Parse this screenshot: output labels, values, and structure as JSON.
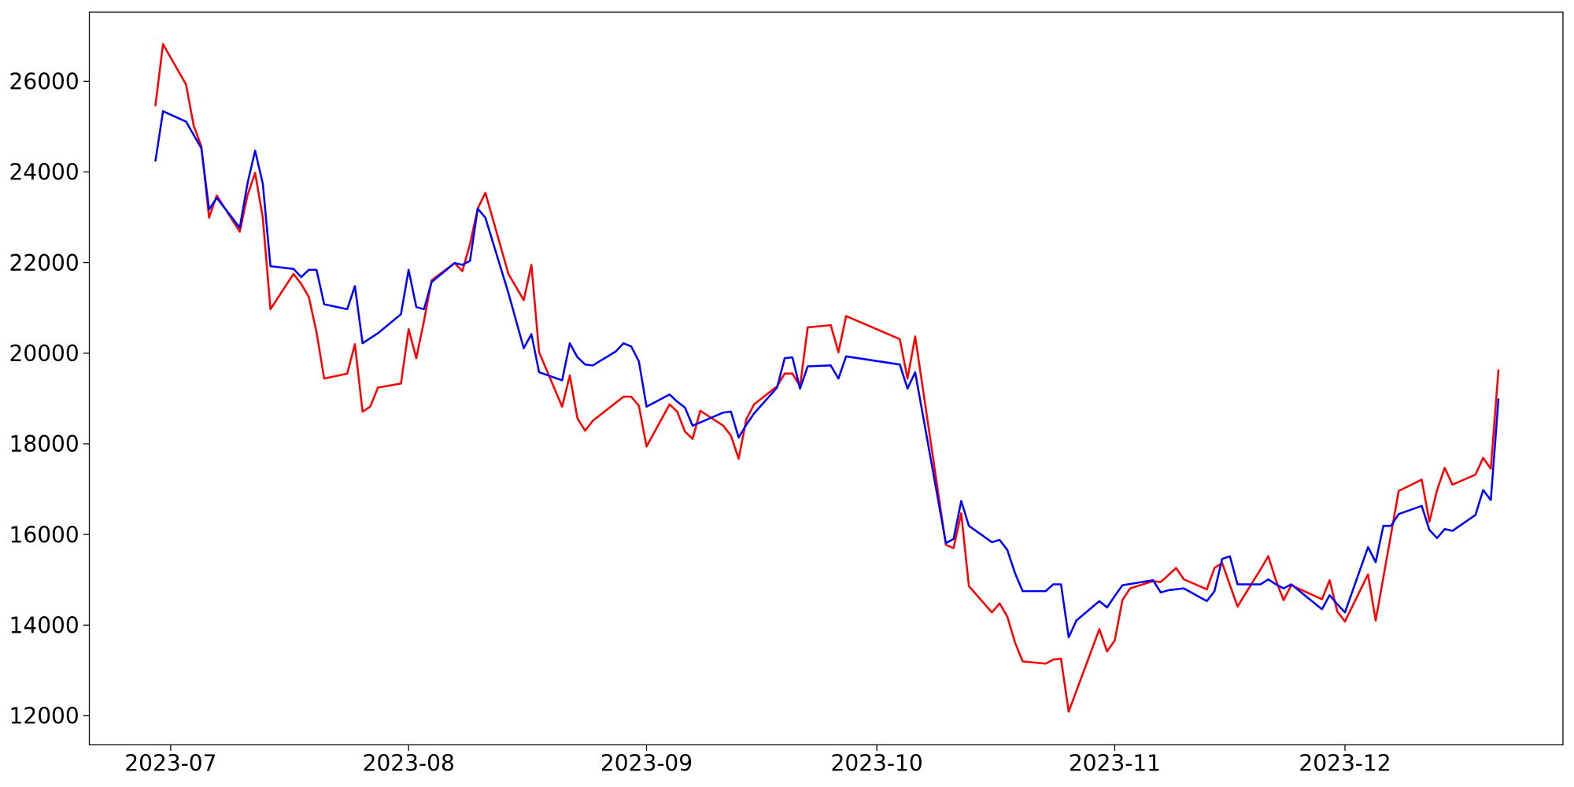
{
  "chart_data": {
    "type": "line",
    "xlim": [
      -10.6,
      181.4
    ],
    "xticks": [
      {
        "value": 0,
        "label": "2023-07"
      },
      {
        "value": 31,
        "label": "2023-08"
      },
      {
        "value": 62,
        "label": "2023-09"
      },
      {
        "value": 92,
        "label": "2023-10"
      },
      {
        "value": 123,
        "label": "2023-11"
      },
      {
        "value": 153,
        "label": "2023-12"
      }
    ],
    "ylim": [
      11358,
      27528
    ],
    "yticks": [
      12000,
      14000,
      16000,
      18000,
      20000,
      22000,
      24000,
      26000
    ],
    "grid": false,
    "series": [
      {
        "color": "#ff0000",
        "x": [
          -2,
          -1,
          2,
          3,
          4,
          5,
          6,
          9,
          10,
          11,
          12,
          13,
          16,
          17,
          18,
          19,
          20,
          23,
          24,
          25,
          26,
          27,
          30,
          31,
          32,
          33,
          34,
          37,
          38,
          39,
          40,
          41,
          44,
          46,
          47,
          48,
          51,
          52,
          53,
          54,
          55,
          59,
          60,
          61,
          62,
          65,
          66,
          67,
          68,
          69,
          72,
          73,
          74,
          75,
          76,
          79,
          80,
          81,
          82,
          83,
          86,
          87,
          88,
          95,
          96,
          97,
          101,
          102,
          103,
          104,
          107,
          108,
          109,
          110,
          111,
          114,
          115,
          116,
          117,
          121,
          122,
          123,
          124,
          125,
          128,
          129,
          131,
          132,
          135,
          136,
          137,
          139,
          142,
          143,
          144,
          145,
          146,
          150,
          151,
          152,
          153,
          156,
          157,
          160,
          163,
          164,
          165,
          166,
          167,
          170,
          171,
          172,
          173
        ],
        "values": [
          25450,
          26820,
          25930,
          25020,
          24560,
          22990,
          23480,
          22680,
          23480,
          23980,
          22990,
          20970,
          21750,
          21530,
          21240,
          20460,
          19440,
          19550,
          20200,
          18710,
          18820,
          19240,
          19330,
          20530,
          19890,
          20710,
          21610,
          21990,
          21810,
          22410,
          23190,
          23540,
          21750,
          21170,
          21950,
          20020,
          18820,
          19510,
          18560,
          18290,
          18510,
          19040,
          19040,
          18840,
          17940,
          18870,
          18710,
          18270,
          18110,
          18730,
          18400,
          18180,
          17670,
          18540,
          18870,
          19270,
          19550,
          19550,
          19270,
          20570,
          20620,
          20020,
          20820,
          20310,
          19440,
          20370,
          15770,
          15700,
          16470,
          14860,
          14280,
          14480,
          14190,
          13620,
          13200,
          13150,
          13240,
          13260,
          12090,
          13910,
          13420,
          13660,
          14550,
          14810,
          14970,
          14950,
          15260,
          15010,
          14790,
          15260,
          15370,
          14410,
          15230,
          15520,
          14990,
          14550,
          14880,
          14570,
          14990,
          14300,
          14080,
          15120,
          14100,
          16960,
          17210,
          16280,
          16980,
          17470,
          17100,
          17320,
          17690,
          17450,
          19640
        ]
      },
      {
        "color": "#0000ff",
        "x": [
          -2,
          -1,
          2,
          4,
          5,
          6,
          9,
          10,
          11,
          12,
          13,
          16,
          17,
          18,
          19,
          20,
          23,
          24,
          25,
          27,
          30,
          31,
          32,
          33,
          34,
          37,
          38,
          39,
          40,
          41,
          44,
          46,
          47,
          48,
          51,
          52,
          53,
          54,
          55,
          58,
          59,
          60,
          61,
          62,
          65,
          66,
          67,
          68,
          72,
          73,
          74,
          75,
          76,
          79,
          80,
          81,
          82,
          83,
          86,
          87,
          88,
          95,
          96,
          97,
          101,
          102,
          103,
          104,
          107,
          108,
          109,
          110,
          111,
          114,
          115,
          116,
          117,
          118,
          121,
          122,
          123,
          124,
          128,
          129,
          130,
          132,
          135,
          136,
          137,
          138,
          139,
          142,
          143,
          144,
          145,
          146,
          150,
          151,
          152,
          153,
          156,
          157,
          158,
          159,
          160,
          163,
          164,
          165,
          166,
          167,
          170,
          171,
          172,
          173
        ],
        "values": [
          24230,
          25340,
          25110,
          24520,
          23170,
          23430,
          22770,
          23740,
          24470,
          23740,
          21920,
          21860,
          21680,
          21840,
          21840,
          21080,
          20970,
          21480,
          20220,
          20440,
          20860,
          21840,
          21020,
          20970,
          21570,
          21990,
          21950,
          22040,
          23190,
          22990,
          21330,
          20110,
          20420,
          19580,
          19400,
          20220,
          19910,
          19750,
          19730,
          20040,
          20220,
          20150,
          19820,
          18820,
          19090,
          18930,
          18800,
          18400,
          18690,
          18710,
          18140,
          18420,
          18670,
          19240,
          19890,
          19910,
          19220,
          19710,
          19730,
          19440,
          19930,
          19750,
          19220,
          19580,
          15810,
          15900,
          16740,
          16190,
          15830,
          15880,
          15660,
          15150,
          14750,
          14750,
          14900,
          14900,
          13730,
          14100,
          14530,
          14390,
          14640,
          14880,
          14990,
          14720,
          14770,
          14810,
          14530,
          14750,
          15460,
          15520,
          14900,
          14900,
          15010,
          14900,
          14810,
          14900,
          14350,
          14660,
          14460,
          14280,
          15720,
          15390,
          16190,
          16190,
          16450,
          16630,
          16100,
          15920,
          16120,
          16080,
          16430,
          16980,
          16760,
          19000
        ]
      }
    ]
  }
}
